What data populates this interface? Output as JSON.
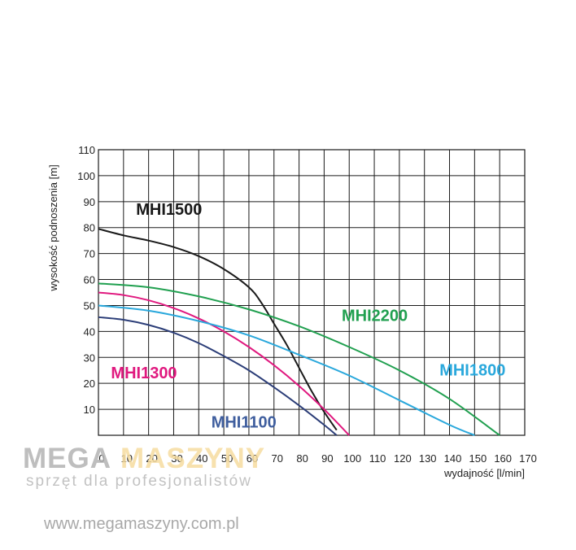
{
  "chart_data": {
    "type": "line",
    "title": "",
    "xlabel": "wydajność [l/min]",
    "ylabel": "wysokość podnoszenia [m]",
    "xlim": [
      0,
      170
    ],
    "ylim": [
      0,
      110
    ],
    "x_ticks": [
      0,
      10,
      20,
      30,
      40,
      50,
      60,
      70,
      80,
      90,
      100,
      110,
      120,
      130,
      140,
      150,
      160,
      170
    ],
    "y_ticks": [
      10,
      20,
      30,
      40,
      50,
      60,
      70,
      80,
      90,
      100,
      110
    ],
    "grid": true,
    "legend": "inline labels",
    "series": [
      {
        "name": "MHI1500",
        "color": "#1a1a1a",
        "points": [
          [
            0,
            79.5
          ],
          [
            10,
            77
          ],
          [
            20,
            75
          ],
          [
            30,
            72.5
          ],
          [
            40,
            69
          ],
          [
            50,
            64
          ],
          [
            60,
            57
          ],
          [
            65,
            51
          ],
          [
            70,
            43
          ],
          [
            75,
            35
          ],
          [
            80,
            26
          ],
          [
            85,
            17
          ],
          [
            90,
            9
          ],
          [
            95,
            2
          ]
        ]
      },
      {
        "name": "MHI2200",
        "color": "#21a050",
        "points": [
          [
            0,
            58.5
          ],
          [
            20,
            57
          ],
          [
            40,
            53.5
          ],
          [
            60,
            48.5
          ],
          [
            80,
            42
          ],
          [
            100,
            34
          ],
          [
            120,
            25
          ],
          [
            140,
            14
          ],
          [
            160,
            0
          ]
        ]
      },
      {
        "name": "MHI1300",
        "color": "#e0197f",
        "points": [
          [
            0,
            55
          ],
          [
            10,
            54
          ],
          [
            20,
            52
          ],
          [
            30,
            49
          ],
          [
            40,
            45
          ],
          [
            50,
            40
          ],
          [
            60,
            34
          ],
          [
            70,
            27
          ],
          [
            80,
            19
          ],
          [
            90,
            10
          ],
          [
            100,
            0
          ]
        ]
      },
      {
        "name": "MHI1800",
        "color": "#2aa8dc",
        "points": [
          [
            0,
            50
          ],
          [
            20,
            48
          ],
          [
            40,
            44
          ],
          [
            60,
            38.5
          ],
          [
            80,
            31
          ],
          [
            100,
            23
          ],
          [
            120,
            13.5
          ],
          [
            140,
            4
          ],
          [
            150,
            0
          ]
        ]
      },
      {
        "name": "MHI1100",
        "color": "#2c3e78",
        "points": [
          [
            0,
            45.5
          ],
          [
            10,
            44.5
          ],
          [
            20,
            42.5
          ],
          [
            30,
            39.5
          ],
          [
            40,
            35.5
          ],
          [
            50,
            30.5
          ],
          [
            60,
            25
          ],
          [
            70,
            18.5
          ],
          [
            80,
            11.5
          ],
          [
            90,
            4
          ],
          [
            95,
            0
          ]
        ]
      }
    ],
    "series_label_positions": [
      {
        "name": "MHI1500",
        "x": 15,
        "y": 85
      },
      {
        "name": "MHI2200",
        "x": 97,
        "y": 44
      },
      {
        "name": "MHI1300",
        "x": 5,
        "y": 22
      },
      {
        "name": "MHI1800",
        "x": 136,
        "y": 23
      },
      {
        "name": "MHI1100",
        "x": 45,
        "y": 3
      }
    ],
    "label_colors": {
      "MHI1500": "#1a1a1a",
      "MHI2200": "#21a050",
      "MHI1300": "#e0197f",
      "MHI1800": "#2aa8dc",
      "MHI1100": "#3f5e9e"
    }
  },
  "watermark": {
    "brand_part1": "MEGA",
    "brand_part2": "MASZYNY",
    "slogan": "sprzęt dla profesjonalistów",
    "url": "www.megamaszyny.com.pl",
    "color_part1": "#b3b3b3",
    "color_part2": "#f6dca0"
  }
}
